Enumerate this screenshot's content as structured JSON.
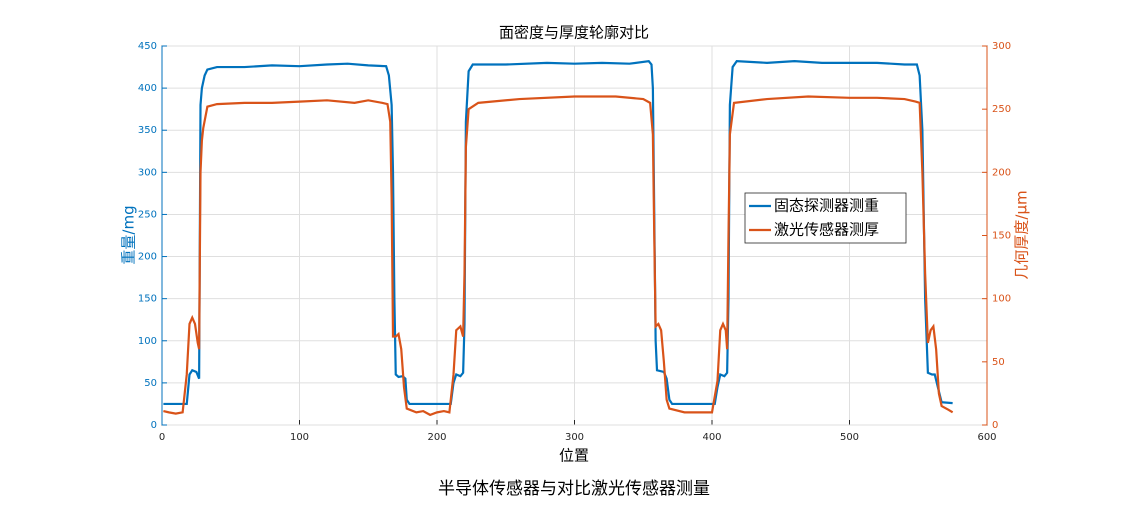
{
  "chart_data": {
    "type": "line",
    "title": "面密度与厚度轮廓对比",
    "caption": "半导体传感器与对比激光传感器测量",
    "xlabel": "位置",
    "ylabel": "重量/mg",
    "y2label": "几何厚度/μm",
    "xlim": [
      0,
      600
    ],
    "xticks": [
      0,
      100,
      200,
      300,
      400,
      500,
      600
    ],
    "ylim": [
      0,
      450
    ],
    "yticks": [
      0,
      50,
      100,
      150,
      200,
      250,
      300,
      350,
      400,
      450
    ],
    "y2lim": [
      0,
      300
    ],
    "y2ticks": [
      0,
      50,
      100,
      150,
      200,
      250,
      300
    ],
    "grid": true,
    "legend_position": "east",
    "series": [
      {
        "name": "固态探测器测重",
        "color": "#0072bd",
        "x": [
          1,
          15,
          18,
          20,
          22,
          25,
          27,
          28,
          29,
          31,
          33,
          40,
          60,
          80,
          100,
          120,
          135,
          150,
          163,
          165,
          167,
          168,
          169,
          170,
          172,
          175,
          177,
          178,
          180,
          200,
          210,
          212,
          214,
          217,
          219,
          220,
          221,
          223,
          226,
          250,
          280,
          300,
          320,
          340,
          354,
          356,
          357,
          358,
          359,
          360,
          365,
          367,
          369,
          371,
          400,
          402,
          404,
          406,
          409,
          411,
          412,
          413,
          415,
          418,
          440,
          460,
          480,
          500,
          520,
          540,
          549,
          551,
          553,
          555,
          557,
          560,
          562,
          565,
          567,
          575
        ],
        "values": [
          25,
          25,
          25,
          60,
          65,
          63,
          55,
          380,
          400,
          415,
          422,
          425,
          425,
          427,
          426,
          428,
          429,
          427,
          426,
          415,
          380,
          300,
          150,
          60,
          57,
          58,
          55,
          30,
          25,
          25,
          25,
          50,
          60,
          58,
          62,
          120,
          360,
          420,
          428,
          428,
          430,
          429,
          430,
          429,
          432,
          428,
          400,
          250,
          100,
          65,
          63,
          55,
          30,
          25,
          25,
          25,
          45,
          60,
          58,
          62,
          150,
          380,
          425,
          432,
          430,
          432,
          430,
          430,
          430,
          428,
          428,
          415,
          350,
          150,
          62,
          60,
          60,
          40,
          27,
          26
        ]
      },
      {
        "name": "激光传感器测厚",
        "color": "#d95319",
        "axis": "y2",
        "x": [
          1,
          5,
          10,
          15,
          18,
          20,
          22,
          24,
          26,
          27,
          28,
          29,
          30,
          33,
          40,
          60,
          80,
          100,
          120,
          140,
          150,
          160,
          164,
          166,
          167,
          168,
          170,
          172,
          174,
          176,
          178,
          185,
          190,
          195,
          200,
          205,
          209,
          212,
          214,
          217,
          219,
          220,
          221,
          223,
          230,
          260,
          300,
          330,
          350,
          355,
          357,
          358,
          359,
          361,
          363,
          365,
          367,
          369,
          380,
          400,
          404,
          406,
          408,
          410,
          411,
          412,
          413,
          416,
          440,
          470,
          500,
          520,
          540,
          548,
          551,
          553,
          555,
          557,
          559,
          561,
          563,
          565,
          567,
          572,
          575
        ],
        "values": [
          11,
          10,
          9,
          10,
          40,
          80,
          85,
          80,
          65,
          60,
          200,
          225,
          235,
          252,
          254,
          255,
          255,
          256,
          257,
          255,
          257,
          255,
          254,
          240,
          180,
          70,
          70,
          72,
          60,
          30,
          13,
          10,
          11,
          8,
          10,
          11,
          10,
          40,
          75,
          78,
          70,
          120,
          220,
          250,
          255,
          258,
          260,
          260,
          258,
          255,
          230,
          150,
          78,
          80,
          75,
          50,
          20,
          13,
          10,
          10,
          35,
          75,
          80,
          75,
          60,
          150,
          230,
          255,
          258,
          260,
          259,
          259,
          258,
          256,
          255,
          200,
          120,
          65,
          75,
          78,
          60,
          25,
          15,
          12,
          10
        ]
      }
    ]
  }
}
